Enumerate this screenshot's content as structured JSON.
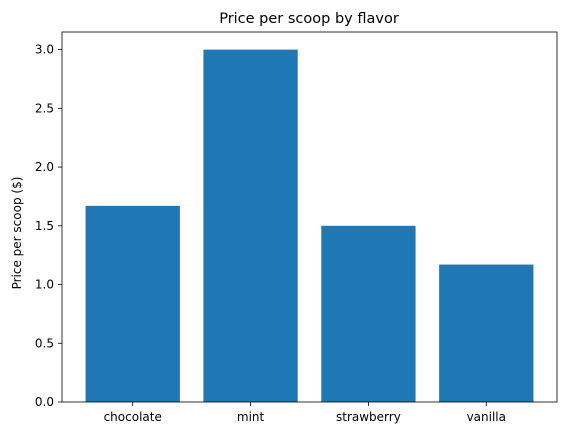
{
  "chart_data": {
    "type": "bar",
    "title": "Price per scoop by flavor",
    "xlabel": "",
    "ylabel": "Price per scoop ($)",
    "categories": [
      "chocolate",
      "mint",
      "strawberry",
      "vanilla"
    ],
    "values": [
      1.67,
      3.0,
      1.5,
      1.17
    ],
    "ylim": [
      0,
      3.15
    ],
    "yticks": [
      "0.0",
      "0.5",
      "1.0",
      "1.5",
      "2.0",
      "2.5",
      "3.0"
    ],
    "grid": false,
    "legend": "none",
    "bar_color": "#1f77b4"
  }
}
